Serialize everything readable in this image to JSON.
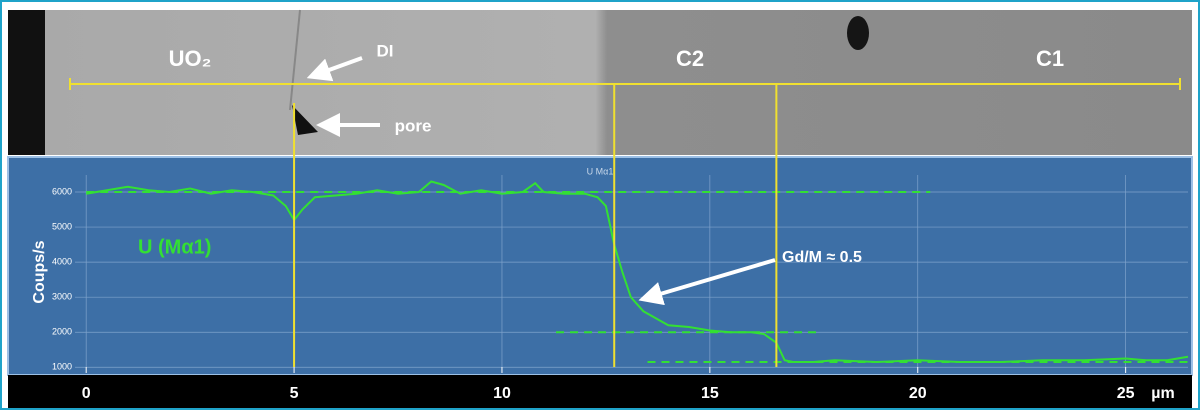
{
  "chart_data": {
    "type": "line",
    "chart_label": "U Mα1",
    "series_label": "U (Mα1)",
    "ylabel": "Coups/s",
    "xlabel": "µm",
    "annotation": "Gd/M ≈ 0.5",
    "image_labels": [
      "UO₂",
      "DI",
      "pore",
      "C2",
      "C1"
    ],
    "x": [
      0,
      0.5,
      1,
      1.5,
      2,
      2.5,
      3,
      3.5,
      4,
      4.5,
      4.8,
      5,
      5.2,
      5.5,
      6,
      6.5,
      7,
      7.5,
      8,
      8.3,
      8.6,
      9,
      9.5,
      10,
      10.5,
      10.8,
      11,
      11.5,
      12,
      12.3,
      12.5,
      12.7,
      12.9,
      13.1,
      13.4,
      13.7,
      14,
      14.5,
      15,
      15.5,
      16,
      16.3,
      16.6,
      16.8,
      17,
      17.5,
      18,
      19,
      20,
      21,
      22,
      23,
      24,
      25,
      25.5,
      26,
      26.5
    ],
    "series": [
      {
        "name": "U (Mα1)",
        "color": "#33e033",
        "values": [
          5950,
          6050,
          6150,
          6050,
          6000,
          6100,
          5950,
          6050,
          6000,
          5900,
          5600,
          5200,
          5500,
          5850,
          5900,
          5950,
          6050,
          5950,
          6000,
          6300,
          6200,
          5950,
          6050,
          5950,
          6000,
          6250,
          6000,
          5950,
          5950,
          5850,
          5600,
          4500,
          3700,
          3000,
          2600,
          2400,
          2200,
          2150,
          2050,
          2000,
          2000,
          1950,
          1700,
          1200,
          1150,
          1150,
          1200,
          1150,
          1200,
          1150,
          1150,
          1200,
          1200,
          1250,
          1200,
          1200,
          1300
        ]
      }
    ],
    "reference_lines": [
      {
        "y": 6000,
        "x": [
          0,
          20.3
        ]
      },
      {
        "y": 2000,
        "x": [
          11.3,
          17.6
        ]
      },
      {
        "y": 1150,
        "x": [
          13.5,
          26.5
        ]
      }
    ],
    "markers_x": [
      5,
      12.7,
      16.6
    ],
    "xlim": [
      -0.75,
      26.5
    ],
    "ylim": [
      780,
      6770
    ],
    "xticks": [
      0,
      5,
      10,
      15,
      20,
      25
    ],
    "yticks": [
      1000,
      2000,
      3000,
      4000,
      5000,
      6000
    ],
    "grid": true
  }
}
